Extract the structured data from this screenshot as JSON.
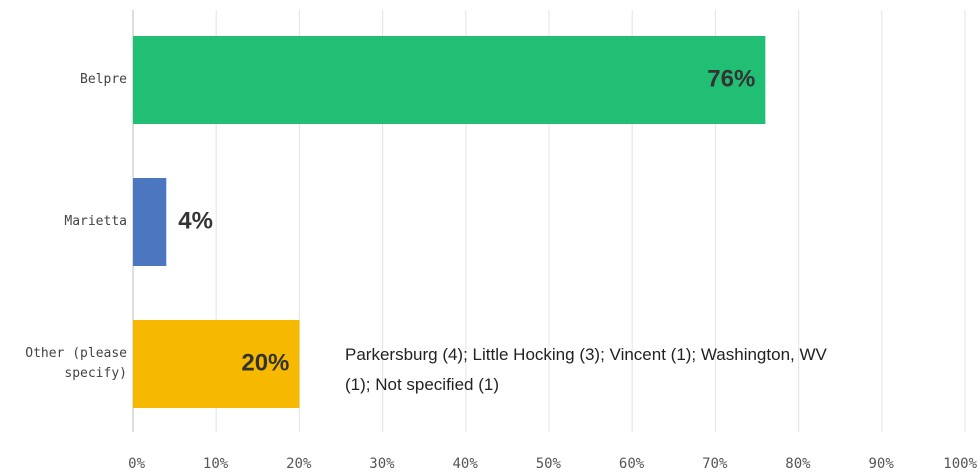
{
  "chart_data": {
    "type": "barh",
    "categories": [
      "Belpre",
      "Marietta",
      "Other (please specify)"
    ],
    "values": [
      76,
      4,
      20
    ],
    "value_labels": [
      "76%",
      "4%",
      "20%"
    ],
    "colors": [
      "#21bf73",
      "#4a77bf",
      "#f7b900"
    ],
    "xlim": [
      0,
      100
    ],
    "xticks": [
      {
        "value": 0,
        "label": "0%"
      },
      {
        "value": 10,
        "label": "10%"
      },
      {
        "value": 20,
        "label": "20%"
      },
      {
        "value": 30,
        "label": "30%"
      },
      {
        "value": 40,
        "label": "40%"
      },
      {
        "value": 50,
        "label": "50%"
      },
      {
        "value": 60,
        "label": "60%"
      },
      {
        "value": 70,
        "label": "70%"
      },
      {
        "value": 80,
        "label": "80%"
      },
      {
        "value": 90,
        "label": "90%"
      },
      {
        "value": 100,
        "label": "100%"
      }
    ],
    "grid": true,
    "annotation": "Parkersburg (4); Little Hocking (3); Vincent (1); Washington, WV (1); Not specified (1)"
  }
}
